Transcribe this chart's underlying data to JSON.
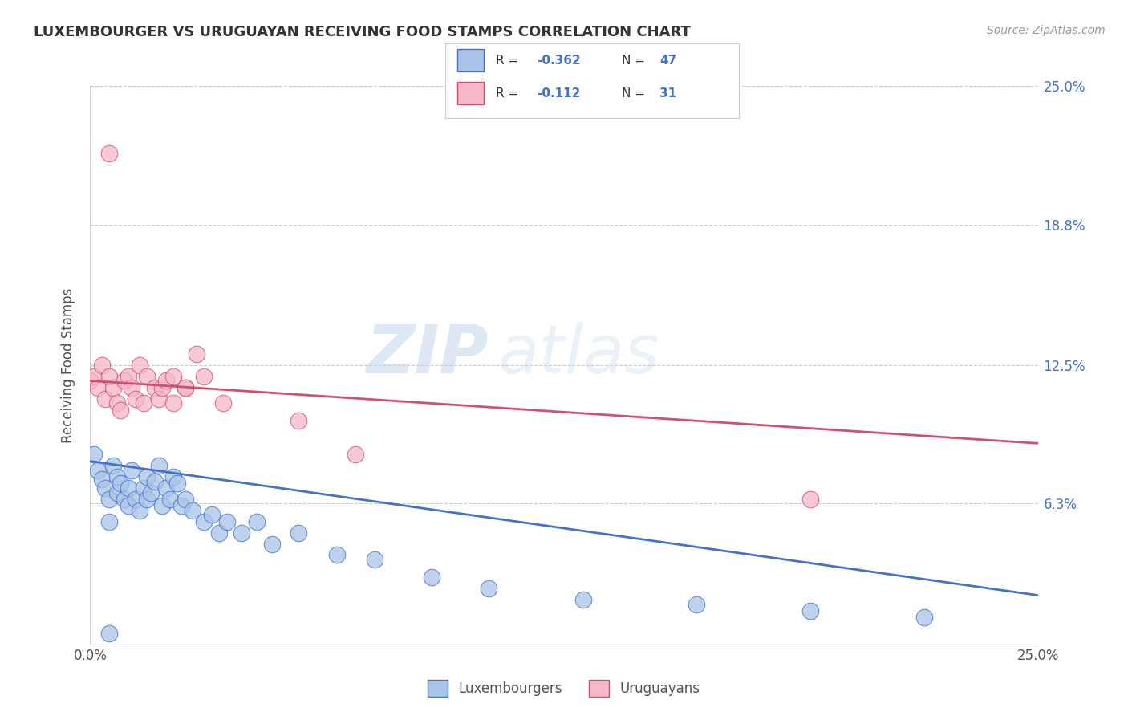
{
  "title": "LUXEMBOURGER VS URUGUAYAN RECEIVING FOOD STAMPS CORRELATION CHART",
  "source": "Source: ZipAtlas.com",
  "ylabel": "Receiving Food Stamps",
  "xlim": [
    0.0,
    0.25
  ],
  "ylim": [
    0.0,
    0.25
  ],
  "ytick_positions": [
    0.063,
    0.125,
    0.188,
    0.25
  ],
  "right_ytick_labels": [
    "25.0%",
    "18.8%",
    "12.5%",
    "6.3%"
  ],
  "right_ytick_positions": [
    0.25,
    0.188,
    0.125,
    0.063
  ],
  "grid_color": "#cccccc",
  "background_color": "#ffffff",
  "lux_color": "#aac4e8",
  "uru_color": "#f4b8c8",
  "lux_line_color": "#4472c4",
  "uru_line_color": "#d05070",
  "lux_r": -0.362,
  "lux_n": 47,
  "uru_r": -0.112,
  "uru_n": 31,
  "watermark_zip": "ZIP",
  "watermark_atlas": "atlas",
  "lux_scatter_x": [
    0.001,
    0.002,
    0.003,
    0.004,
    0.005,
    0.005,
    0.006,
    0.007,
    0.007,
    0.008,
    0.009,
    0.01,
    0.01,
    0.011,
    0.012,
    0.013,
    0.014,
    0.015,
    0.015,
    0.016,
    0.017,
    0.018,
    0.019,
    0.02,
    0.021,
    0.022,
    0.023,
    0.024,
    0.025,
    0.027,
    0.03,
    0.032,
    0.034,
    0.036,
    0.04,
    0.044,
    0.048,
    0.055,
    0.065,
    0.075,
    0.09,
    0.105,
    0.13,
    0.16,
    0.19,
    0.22,
    0.005
  ],
  "lux_scatter_y": [
    0.085,
    0.078,
    0.074,
    0.07,
    0.065,
    0.055,
    0.08,
    0.075,
    0.068,
    0.072,
    0.065,
    0.07,
    0.062,
    0.078,
    0.065,
    0.06,
    0.07,
    0.075,
    0.065,
    0.068,
    0.073,
    0.08,
    0.062,
    0.07,
    0.065,
    0.075,
    0.072,
    0.062,
    0.065,
    0.06,
    0.055,
    0.058,
    0.05,
    0.055,
    0.05,
    0.055,
    0.045,
    0.05,
    0.04,
    0.038,
    0.03,
    0.025,
    0.02,
    0.018,
    0.015,
    0.012,
    0.005
  ],
  "uru_scatter_x": [
    0.0,
    0.001,
    0.002,
    0.003,
    0.004,
    0.005,
    0.006,
    0.007,
    0.008,
    0.009,
    0.01,
    0.011,
    0.012,
    0.013,
    0.014,
    0.015,
    0.017,
    0.018,
    0.019,
    0.02,
    0.022,
    0.025,
    0.028,
    0.022,
    0.025,
    0.03,
    0.035,
    0.055,
    0.07,
    0.19,
    0.005
  ],
  "uru_scatter_y": [
    0.118,
    0.12,
    0.115,
    0.125,
    0.11,
    0.12,
    0.115,
    0.108,
    0.105,
    0.118,
    0.12,
    0.115,
    0.11,
    0.125,
    0.108,
    0.12,
    0.115,
    0.11,
    0.115,
    0.118,
    0.12,
    0.115,
    0.13,
    0.108,
    0.115,
    0.12,
    0.108,
    0.1,
    0.085,
    0.065,
    0.22
  ],
  "lux_trend_x0": 0.0,
  "lux_trend_y0": 0.082,
  "lux_trend_x1": 0.25,
  "lux_trend_y1": 0.022,
  "uru_trend_x0": 0.0,
  "uru_trend_y0": 0.118,
  "uru_trend_x1": 0.25,
  "uru_trend_y1": 0.09
}
